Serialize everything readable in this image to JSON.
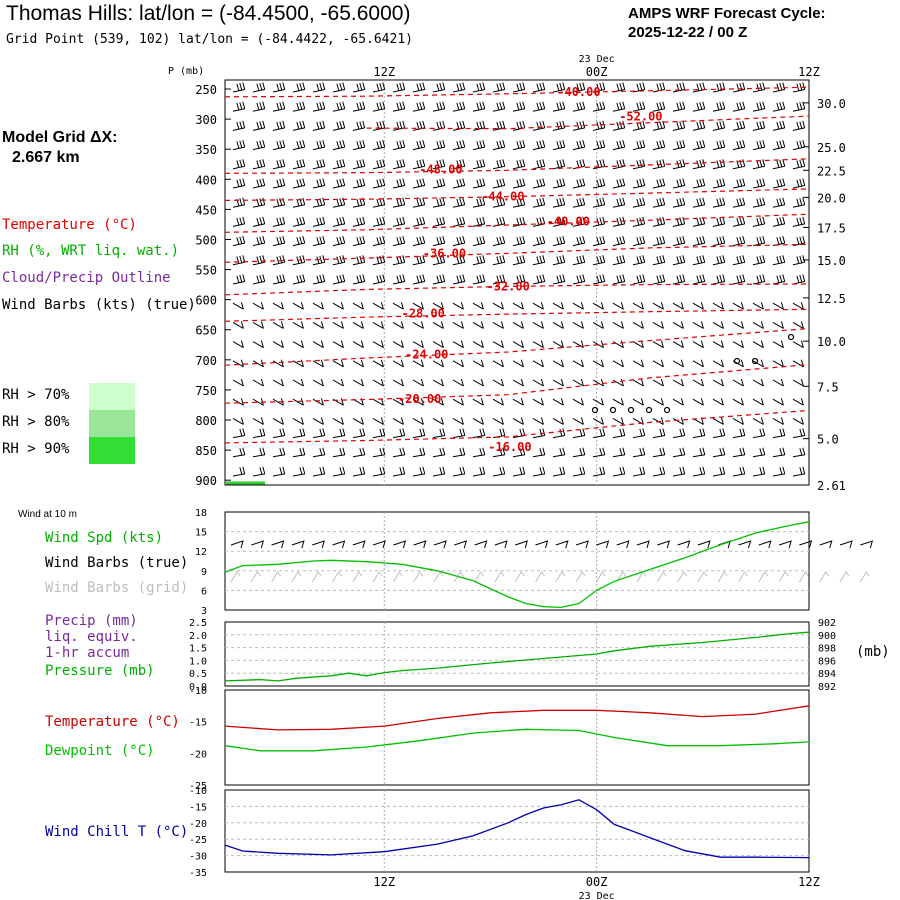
{
  "header": {
    "title": "Thomas Hills:  lat/lon = (-84.4500, -65.6000)",
    "subtitle": "Grid Point (539, 102) lat/lon = (-84.4422, -65.6421)",
    "cycle_line1": "AMPS WRF Forecast Cycle:",
    "cycle_line2": "2025-12-22 / 00  Z"
  },
  "model_grid": {
    "line1": "Model Grid ΔX:",
    "line2": "2.667 km"
  },
  "colors": {
    "temperature": "#e00000",
    "rh_green": "#00b000",
    "wind": "#000000",
    "grid_barb": "#bdbdbd",
    "precip": "#7a2a9a",
    "dewpoint": "#00c000",
    "windchill": "#0000aa",
    "temp_line": "#cc0000",
    "cloud": "#7a2a9a"
  },
  "left_legend": {
    "temperature": "Temperature (°C)",
    "rh": "RH (%, WRT liq. wat.)",
    "cloud": "Cloud/Precip Outline",
    "wind": "Wind Barbs (kts) (true)",
    "rh70": "RH > 70%",
    "rh80": "RH > 80%",
    "rh90": "RH > 90%",
    "rh70_color": "#ccffcc",
    "rh80_color": "#99e699",
    "rh90_color": "#33dd33"
  },
  "time_axis": {
    "top_ticks": [
      "12Z",
      "00Z",
      "12Z"
    ],
    "date_label": "23 Dec",
    "bottom_ticks": [
      "12Z",
      "00Z",
      "12Z"
    ]
  },
  "chart_data": [
    {
      "type": "line",
      "title": "Vertical profile: temperature isotherms and wind barbs",
      "ylabel": "P (mb)",
      "y2label": "Kft MSL",
      "pressure_ticks": [
        250,
        300,
        350,
        400,
        450,
        500,
        550,
        600,
        650,
        700,
        750,
        800,
        850,
        900
      ],
      "height_ticks": [
        "30.0",
        "25.0",
        "22.5",
        "20.0",
        "17.5",
        "15.0",
        "12.5",
        "10.0",
        "7.5",
        "5.0",
        "2.61"
      ],
      "height_tick_pressures": [
        273,
        346,
        385,
        430,
        480,
        534,
        597,
        669,
        744,
        831,
        908
      ],
      "ylim": [
        235,
        908
      ],
      "xlim_hours": [
        0,
        33
      ],
      "x_tick_hours": [
        9,
        21,
        33
      ],
      "isotherm_labels": [
        "-40.00",
        "-52.00",
        "-48.00",
        "-44.00",
        "-40.00",
        "-36.00",
        "-32.00",
        "-28.00",
        "-24.00",
        "-20.00",
        "-16.00"
      ],
      "isotherm_label_hours": [
        20.0,
        23.5,
        12.2,
        15.7,
        19.4,
        12.4,
        16.0,
        11.2,
        11.4,
        11.0,
        16.1
      ],
      "isotherm_label_pressures": [
        255,
        296,
        384,
        429,
        470,
        523,
        578,
        623,
        691,
        765,
        845
      ],
      "isotherms": [
        {
          "label": "-40.00",
          "hours": [
            0,
            8,
            16,
            24,
            33
          ],
          "pressures": [
            263,
            262,
            258,
            253,
            247
          ]
        },
        {
          "label": "-52.00",
          "hours": [
            8,
            16,
            24,
            33
          ],
          "pressures": [
            315,
            316,
            306,
            295
          ]
        },
        {
          "label": "-48.00",
          "hours": [
            0,
            8,
            16,
            24,
            33
          ],
          "pressures": [
            390,
            389,
            385,
            376,
            366
          ]
        },
        {
          "label": "-44.00",
          "hours": [
            0,
            8,
            16,
            24,
            33
          ],
          "pressures": [
            435,
            433,
            429,
            423,
            416
          ]
        },
        {
          "label": "-40.00",
          "hours": [
            0,
            8,
            16,
            24,
            33
          ],
          "pressures": [
            488,
            484,
            476,
            468,
            458
          ]
        },
        {
          "label": "-36.00",
          "hours": [
            0,
            8,
            16,
            24,
            33
          ],
          "pressures": [
            538,
            531,
            523,
            514,
            508
          ]
        },
        {
          "label": "-32.00",
          "hours": [
            0,
            8,
            16,
            24,
            33
          ],
          "pressures": [
            592,
            583,
            578,
            575,
            574
          ]
        },
        {
          "label": "-28.00",
          "hours": [
            0,
            8,
            16,
            24,
            33
          ],
          "pressures": [
            636,
            629,
            624,
            620,
            616
          ]
        },
        {
          "label": "-24.00",
          "hours": [
            0,
            8,
            16,
            24,
            33
          ],
          "pressures": [
            709,
            697,
            687,
            668,
            648
          ]
        },
        {
          "label": "-20.00",
          "hours": [
            0,
            8,
            16,
            24,
            33
          ],
          "pressures": [
            772,
            766,
            758,
            730,
            708
          ]
        },
        {
          "label": "-16.00",
          "hours": [
            0,
            8,
            16,
            24,
            33
          ],
          "pressures": [
            838,
            834,
            828,
            804,
            784
          ]
        }
      ]
    },
    {
      "type": "line",
      "title": "Wind at 10 m",
      "series_label": "Wind Spd (kts)",
      "barbs_true_label": "Wind Barbs (true)",
      "barbs_grid_label": "Wind Barbs (grid)",
      "y_ticks": [
        3,
        6,
        9,
        12,
        15,
        18
      ],
      "ylim": [
        3,
        18
      ],
      "xlim_hours": [
        0,
        33
      ],
      "series": [
        {
          "name": "Wind Spd (kts)",
          "hours": [
            0,
            1,
            3,
            5,
            6,
            8,
            10,
            12,
            14,
            16,
            17,
            18,
            19,
            20,
            21,
            22,
            24,
            26,
            28,
            30,
            32,
            33
          ],
          "values": [
            8.8,
            9.8,
            10.0,
            10.5,
            10.6,
            10.4,
            10.0,
            9.0,
            7.5,
            5.0,
            4.0,
            3.5,
            3.4,
            4.0,
            6.0,
            7.4,
            9.2,
            11.0,
            13.0,
            14.8,
            16.0,
            16.5
          ]
        }
      ]
    },
    {
      "type": "line",
      "title": "Precip and Pressure",
      "precip_label": "Precip (mm)",
      "precip_label2": "liq. equiv.",
      "precip_label3": "1-hr accum",
      "pressure_label": "Pressure (mb)",
      "y2unit": "(mb)",
      "y_ticks": [
        "0.0",
        "0.5",
        "1.0",
        "1.5",
        "2.0",
        "2.5"
      ],
      "y2_ticks": [
        "892",
        "894",
        "896",
        "898",
        "900",
        "902"
      ],
      "ylim": [
        0,
        2.5
      ],
      "y2lim": [
        892,
        902
      ],
      "xlim_hours": [
        0,
        33
      ],
      "series": [
        {
          "name": "Pressure (mb)",
          "hours": [
            0,
            2,
            3,
            4,
            6,
            7,
            8,
            9,
            10,
            11,
            12,
            15,
            18,
            21,
            22,
            24,
            27,
            30,
            32,
            33
          ],
          "values": [
            892.8,
            893.0,
            892.8,
            893.2,
            893.6,
            894.0,
            893.6,
            894.1,
            894.4,
            894.6,
            894.8,
            895.6,
            896.3,
            897.0,
            897.5,
            898.2,
            898.8,
            899.6,
            900.2,
            900.4
          ]
        }
      ]
    },
    {
      "type": "line",
      "title": "Temperature and Dewpoint",
      "temp_label": "Temperature (°C)",
      "dew_label": "Dewpoint (°C)",
      "y_ticks": [
        -25,
        -20,
        -15,
        -10
      ],
      "ylim": [
        -25,
        -10
      ],
      "xlim_hours": [
        0,
        33
      ],
      "series": [
        {
          "name": "Temperature (°C)",
          "hours": [
            0,
            3,
            6,
            9,
            12,
            15,
            18,
            21,
            24,
            27,
            30,
            33
          ],
          "values": [
            -15.7,
            -16.3,
            -16.2,
            -15.7,
            -14.5,
            -13.6,
            -13.2,
            -13.2,
            -13.6,
            -14.2,
            -13.8,
            -12.5
          ]
        },
        {
          "name": "Dewpoint (°C)",
          "hours": [
            0,
            2,
            5,
            8,
            11,
            14,
            17,
            20,
            22,
            25,
            28,
            31,
            33
          ],
          "values": [
            -18.8,
            -19.6,
            -19.6,
            -19.0,
            -18.0,
            -16.8,
            -16.2,
            -16.4,
            -17.5,
            -18.8,
            -18.8,
            -18.5,
            -18.2
          ]
        }
      ]
    },
    {
      "type": "line",
      "title": "Wind Chill",
      "series_label": "Wind Chill T (°C)",
      "y_ticks": [
        -35,
        -30,
        -25,
        -20,
        -15,
        -10
      ],
      "ylim": [
        -35,
        -10
      ],
      "xlim_hours": [
        0,
        33
      ],
      "series": [
        {
          "name": "Wind Chill T (°C)",
          "hours": [
            0,
            1,
            3,
            6,
            9,
            12,
            14,
            16,
            17,
            18,
            19,
            20,
            21,
            22,
            24,
            26,
            28,
            30,
            33
          ],
          "values": [
            -26.8,
            -28.6,
            -29.3,
            -29.8,
            -28.8,
            -26.5,
            -24.0,
            -20.0,
            -17.5,
            -15.5,
            -14.5,
            -13.0,
            -16.0,
            -20.5,
            -24.5,
            -28.5,
            -30.5,
            -30.5,
            -30.6
          ]
        }
      ]
    }
  ]
}
